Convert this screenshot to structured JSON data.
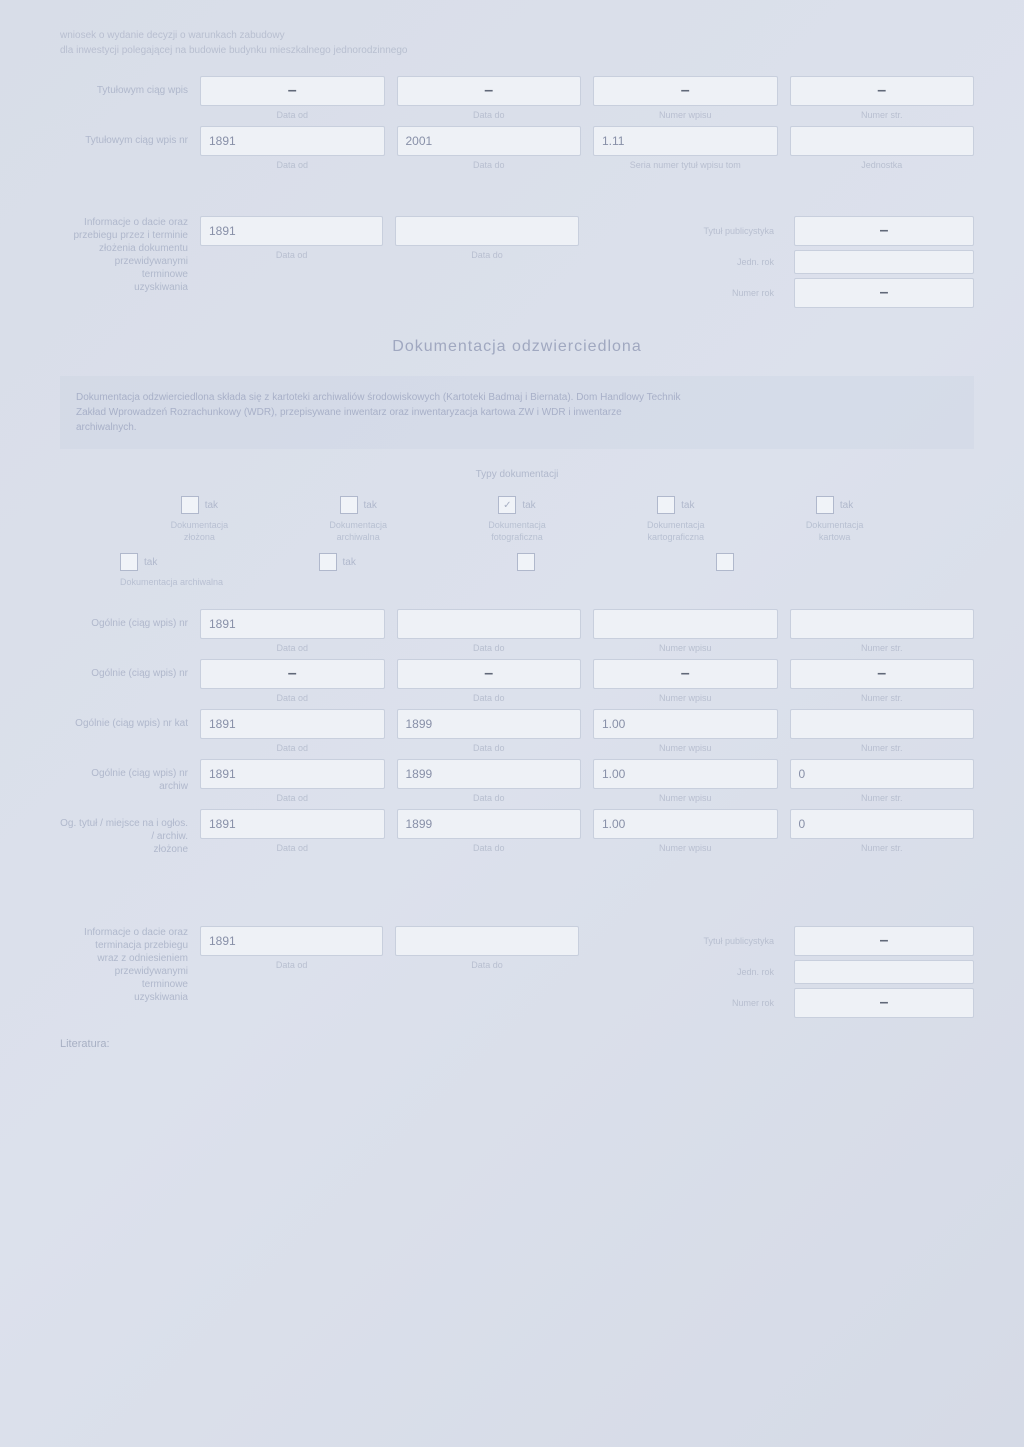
{
  "header": {
    "line1": "wniosek o wydanie decyzji o warunkach zabudowy",
    "line2": "dla inwestycji polegającej na budowie budynku mieszkalnego jednorodzinnego"
  },
  "section1": {
    "row1": {
      "label": "Tytułowym ciąg wpis",
      "sublabels": [
        "Data od",
        "Data do",
        "Numer wpisu",
        "Numer str."
      ],
      "values": [
        "–",
        "–",
        "–",
        "–"
      ]
    },
    "row2": {
      "label": "Tytułowym ciąg wpis nr",
      "sublabels": [
        "Data od",
        "Data do",
        "Seria numer tytuł wpisu tom",
        "Jednostka"
      ],
      "values": [
        "1891",
        "2001",
        "1.11",
        ""
      ]
    },
    "row3": {
      "label": "Informacje o dacie oraz przebiegu przez i terminie\nzłożenia dokumentu\nprzewidywanymi\nterminowe\nuzyskiwania",
      "field1": "1891",
      "field2": "",
      "sub1": "Data od",
      "sub2": "Data do",
      "sidelabel1": "Tytuł publicystyka",
      "sideval1": "–",
      "sidelabel2": "Jedn. rok",
      "sideval2": "",
      "sidelabel3": "Numer rok",
      "sideval3": "–"
    }
  },
  "sectionTitle": "Dokumentacja odzwierciedlona",
  "infoBlock": "Dokumentacja odzwierciedlona składa się z kartoteki archiwaliów środowiskowych (Kartoteki Badmaj i Biernata). Dom Handlowy Technik\nZakład Wprowadzeń Rozrachunkowy (WDR), przepisywane inwentarz oraz inwentaryzacja kartowa ZW i WDR i inwentarze\narchiwalnych.",
  "subsectionTitle": "Typy dokumentacji",
  "checkboxes": {
    "row1": [
      {
        "checked": false,
        "label": "tak",
        "desc": "Dokumentacja\nzłożona"
      },
      {
        "checked": false,
        "label": "tak",
        "desc": "Dokumentacja\narchiwalna"
      },
      {
        "checked": true,
        "label": "tak",
        "desc": "Dokumentacja\nfotograficzna"
      },
      {
        "checked": false,
        "label": "tak",
        "desc": "Dokumentacja\nkartograficzna"
      },
      {
        "checked": false,
        "label": "tak",
        "desc": "Dokumentacja\nkartowa"
      }
    ],
    "row2": [
      {
        "checked": false,
        "label": "tak",
        "desc": "Dokumentacja archiwalna"
      },
      {
        "checked": false,
        "label": "tak",
        "desc": ""
      },
      {
        "checked": false,
        "label": "",
        "desc": ""
      },
      {
        "checked": false,
        "label": "",
        "desc": ""
      }
    ]
  },
  "section2": {
    "rows": [
      {
        "label": "Ogólnie (ciąg wpis) nr",
        "values": [
          "1891",
          "",
          "",
          ""
        ],
        "subs": [
          "Data od",
          "Data do",
          "Numer wpisu",
          "Numer str."
        ]
      },
      {
        "label": "Ogólnie (ciąg wpis) nr",
        "values": [
          "–",
          "–",
          "–",
          "–"
        ],
        "subs": [
          "Data od",
          "Data do",
          "Numer wpisu",
          "Numer str."
        ]
      },
      {
        "label": "Ogólnie (ciąg wpis) nr kat",
        "values": [
          "1891",
          "1899",
          "1.00",
          ""
        ],
        "subs": [
          "Data od",
          "Data do",
          "Numer wpisu",
          "Numer str."
        ]
      },
      {
        "label": "Ogólnie (ciąg wpis) nr archiw",
        "values": [
          "1891",
          "1899",
          "1.00",
          "0"
        ],
        "subs": [
          "Data od",
          "Data do",
          "Numer wpisu",
          "Numer str."
        ]
      },
      {
        "label": "Og. tytuł / miejsce na i ogłos. / archiw.\nzłożone",
        "values": [
          "1891",
          "1899",
          "1.00",
          "0"
        ],
        "subs": [
          "Data od",
          "Data do",
          "Numer wpisu",
          "Numer str."
        ]
      }
    ]
  },
  "section3": {
    "label": "Informacje o dacie oraz\nterminacja przebiegu\nwraz z odniesieniem\nprzewidywanymi\nterminowe\nuzyskiwania",
    "field1": "1891",
    "field2": "",
    "sub1": "Data od",
    "sub2": "Data do",
    "sidelabel1": "Tytuł publicystyka",
    "sideval1": "–",
    "sidelabel2": "Jedn. rok",
    "sideval2": "",
    "sidelabel3": "Numer rok",
    "sideval3": "–"
  },
  "footer": "Literatura:"
}
